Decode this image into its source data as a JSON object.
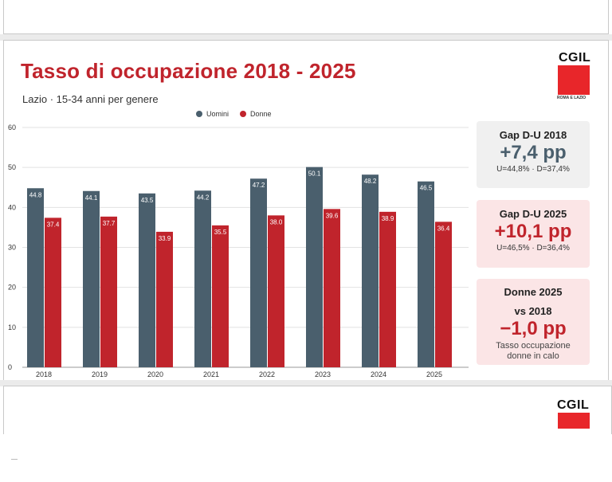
{
  "title": "Tasso di occupazione 2018 - 2025",
  "subtitle": "Lazio · 15-34 anni per genere",
  "brand": {
    "logo_text": "CGIL",
    "logo_subtext": "ROMA E LAZIO",
    "color": "#e8262a"
  },
  "legend": [
    {
      "label": "Uomini",
      "color": "#4a5f6d"
    },
    {
      "label": "Donne",
      "color": "#c0242c"
    }
  ],
  "cards": [
    {
      "title": "Gap D-U 2018",
      "value": "+7,4 pp",
      "detail": "U=44,8% · D=37,4%"
    },
    {
      "title": "Gap D-U 2025",
      "value": "+10,1 pp",
      "detail": "U=46,5% · D=36,4%"
    },
    {
      "title": "Donne 2025",
      "title2": "vs 2018",
      "value": "−1,0 pp",
      "detail": "Tasso occupazione",
      "detail2": "donne in calo"
    }
  ],
  "chart_data": {
    "type": "bar",
    "categories": [
      "2018",
      "2019",
      "2020",
      "2021",
      "2022",
      "2023",
      "2024",
      "2025"
    ],
    "series": [
      {
        "name": "Uomini",
        "color": "#4a5f6d",
        "values": [
          44.8,
          44.1,
          43.5,
          44.2,
          47.2,
          50.1,
          48.2,
          46.5
        ]
      },
      {
        "name": "Donne",
        "color": "#c0242c",
        "values": [
          37.4,
          37.7,
          33.9,
          35.5,
          38.0,
          39.6,
          38.9,
          36.4
        ]
      }
    ],
    "ylim": [
      0,
      60
    ],
    "yticks": [
      0,
      10,
      20,
      30,
      40,
      50,
      60
    ],
    "grid": true,
    "legend_position": "top-center"
  }
}
